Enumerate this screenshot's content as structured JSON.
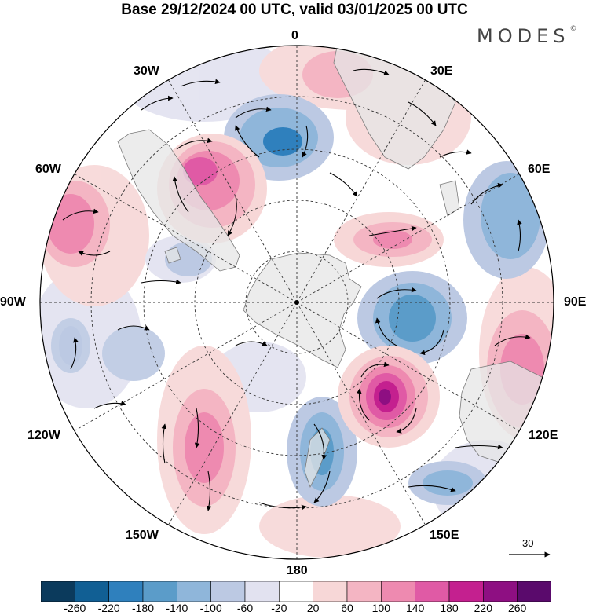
{
  "title": "Base 29/12/2024 00 UTC, valid 03/01/2025 00 UTC",
  "brand": "MODES",
  "brand_mark": "©",
  "longitude_labels": {
    "lon_0": "0",
    "lon_30e": "30E",
    "lon_60e": "60E",
    "lon_90e": "90E",
    "lon_120e": "120E",
    "lon_150e": "150E",
    "lon_180": "180",
    "lon_150w": "150W",
    "lon_120w": "120W",
    "lon_90w": "90W",
    "lon_60w": "60W",
    "lon_30w": "30W"
  },
  "vector_reference": {
    "value": "30"
  },
  "colorbar": {
    "ticks": [
      "-260",
      "-220",
      "-180",
      "-140",
      "-100",
      "-60",
      "-20",
      "20",
      "60",
      "100",
      "140",
      "180",
      "220",
      "260"
    ],
    "colors": [
      "#0b3a5c",
      "#115f94",
      "#2f80bd",
      "#5b9cc9",
      "#8fb6da",
      "#bcc9e3",
      "#e2e2f0",
      "#ffffff",
      "#f7d7d7",
      "#f4b5c3",
      "#ee8ab0",
      "#e05aa5",
      "#c4208f",
      "#8e0f82",
      "#5a0a6c"
    ]
  },
  "colors": {
    "land": "#e6e6e6",
    "ocean": "#ffffff",
    "negative_anomaly": "#5b9cc9",
    "positive_anomaly": "#e05aa5"
  }
}
